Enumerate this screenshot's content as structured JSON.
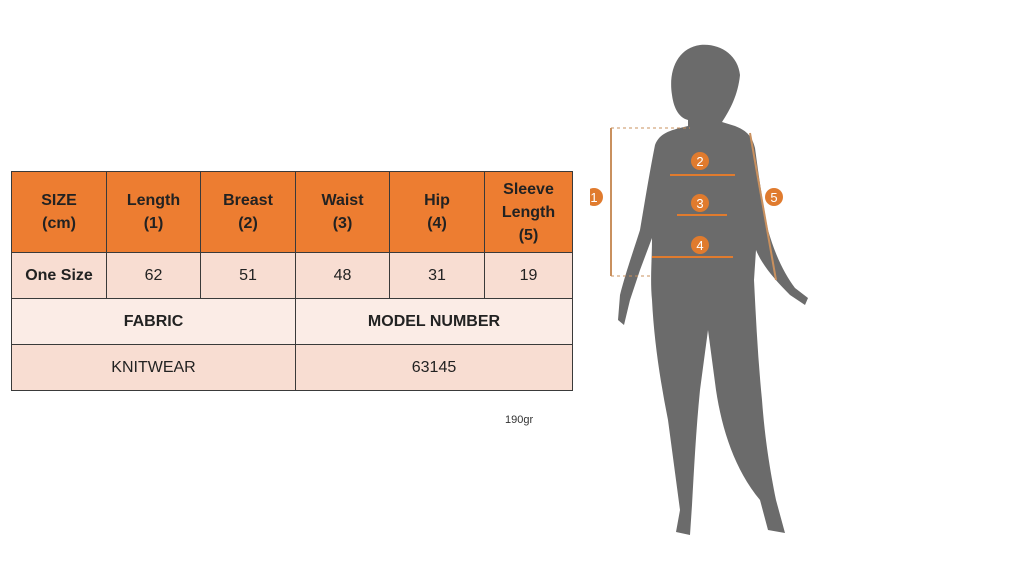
{
  "table": {
    "headers": [
      "SIZE\n(cm)",
      "Length\n(1)",
      "Breast\n(2)",
      "Waist\n(3)",
      "Hip\n(4)",
      "Sleeve\nLength\n(5)"
    ],
    "row": [
      "One Size",
      "62",
      "51",
      "48",
      "31",
      "19"
    ],
    "fabric_label": "FABRIC",
    "model_label": "MODEL NUMBER",
    "fabric": "KNITWEAR",
    "model": "63145"
  },
  "weight": "190gr",
  "figure": {
    "markers": [
      "1",
      "2",
      "3",
      "4",
      "5"
    ],
    "accent": "#E07B2E",
    "silhouette": "#6b6b6b"
  }
}
